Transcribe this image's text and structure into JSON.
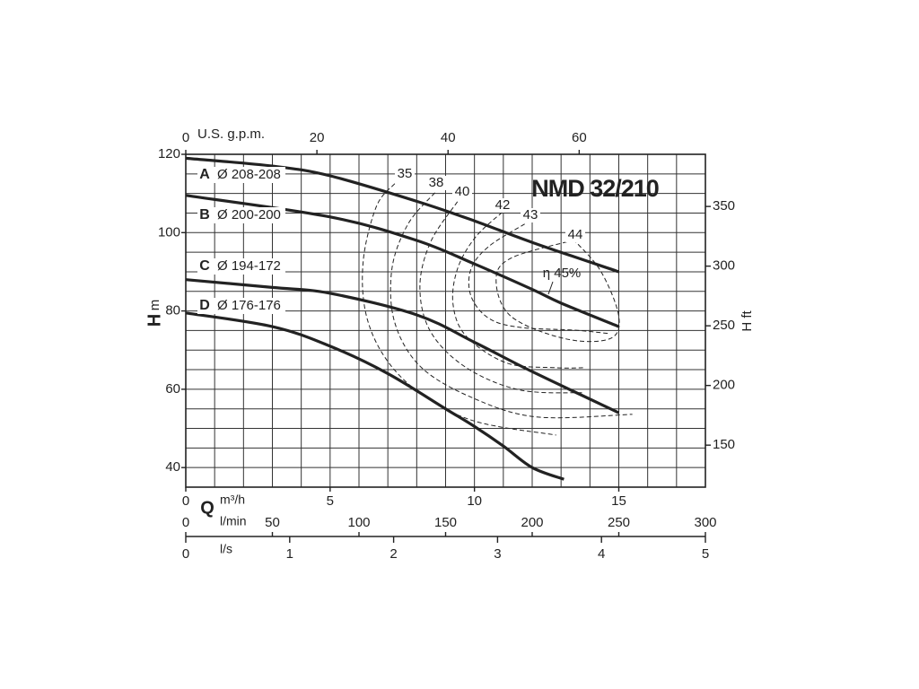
{
  "chart_data": {
    "type": "line",
    "title": "NMD 32/210",
    "x_label": "Q",
    "x_unit": "m³/h",
    "y_label": "H",
    "y_unit": "m",
    "y2_label": "H ft",
    "xtop_label": "U.S. g.p.m.",
    "x2_label": "l/min",
    "x3_label": "l/s",
    "xlim": [
      0,
      18
    ],
    "xticks": [
      0,
      5,
      10,
      15
    ],
    "xgrid": [
      0,
      1,
      2,
      3,
      4,
      5,
      6,
      7,
      8,
      9,
      10,
      11,
      12,
      13,
      14,
      15,
      16,
      17,
      18
    ],
    "ylim": [
      35,
      120
    ],
    "yticks": [
      40,
      60,
      80,
      100,
      120
    ],
    "ygrid": [
      35,
      40,
      45,
      50,
      55,
      60,
      65,
      70,
      75,
      80,
      85,
      90,
      95,
      100,
      105,
      110,
      115,
      120
    ],
    "y2lim": [
      114.8,
      393.7
    ],
    "y2ticks": [
      150,
      200,
      250,
      300,
      350
    ],
    "xtoplim": [
      0,
      79.25
    ],
    "xtopticks": [
      0,
      20,
      40,
      60
    ],
    "x2lim": [
      0,
      300
    ],
    "x2ticks": [
      0,
      50,
      100,
      150,
      200,
      250,
      300
    ],
    "x3lim": [
      0,
      5
    ],
    "x3ticks": [
      0,
      1,
      2,
      3,
      4,
      5
    ],
    "color": "#222222",
    "series": [
      {
        "name": "A",
        "label": "Ø 208-208",
        "x": [
          0,
          3,
          5,
          8,
          10,
          12,
          15
        ],
        "values": [
          119,
          117,
          114.5,
          108,
          103,
          97.5,
          90
        ]
      },
      {
        "name": "B",
        "label": "Ø 200-200",
        "x": [
          0,
          5,
          8,
          10,
          12,
          13,
          15
        ],
        "values": [
          109.5,
          104,
          98,
          92,
          85.5,
          82,
          76
        ]
      },
      {
        "name": "C",
        "label": "Ø 194-172",
        "x": [
          0,
          3,
          5,
          8,
          10,
          12,
          15
        ],
        "values": [
          88,
          86,
          84.5,
          79,
          72,
          64.5,
          54
        ]
      },
      {
        "name": "D",
        "label": "Ø 176-176",
        "x": [
          0,
          3,
          5,
          7,
          9,
          10,
          11,
          12,
          13.1
        ],
        "values": [
          79.5,
          76,
          71,
          64,
          55,
          50.5,
          45.5,
          40,
          37
        ]
      }
    ],
    "efficiency_curves": [
      {
        "label": 35,
        "x": [
          7.24,
          6.61,
          6.15,
          6.24,
          6.93,
          8.17,
          10.03,
          12.83
        ],
        "y": [
          112.5,
          106.8,
          93,
          79.3,
          67.8,
          58.7,
          51.8,
          48.3
        ]
      },
      {
        "label": 38,
        "x": [
          8.63,
          7.7,
          7.14,
          7.24,
          8.17,
          10.03,
          12.2,
          15.47
        ],
        "y": [
          110.2,
          102.2,
          90.7,
          77,
          65.5,
          57.5,
          52.9,
          53.6
        ]
      },
      {
        "label": 40,
        "x": [
          9.41,
          8.48,
          8.11,
          8.48,
          9.72,
          11.58,
          13.76
        ],
        "y": [
          107.9,
          97.6,
          86.1,
          74.7,
          65.5,
          59.8,
          59.1
        ]
      },
      {
        "label": 42,
        "x": [
          10.96,
          10.03,
          9.41,
          9.26,
          9.72,
          11.12,
          12.83,
          13.76
        ],
        "y": [
          105.2,
          98.8,
          90.7,
          81.6,
          73.5,
          66.7,
          65.5,
          65.5
        ]
      },
      {
        "label": 43,
        "x": [
          11.74,
          10.5,
          9.88,
          9.88,
          10.5,
          11.58,
          13.45,
          14.69
        ],
        "y": [
          102.2,
          96.5,
          90.7,
          83.8,
          78.1,
          75.8,
          75.1,
          74.2
        ]
      },
      {
        "label": 44,
        "x": [
          13.45,
          11.27,
          10.75,
          11.27,
          13.14,
          14.69,
          15.0,
          14.38,
          13.45
        ],
        "y": [
          98.1,
          93.5,
          87.8,
          78.6,
          72.9,
          72.9,
          78.6,
          90.1,
          98.1
        ]
      }
    ],
    "efficiency_peak_label": "η 45%"
  }
}
